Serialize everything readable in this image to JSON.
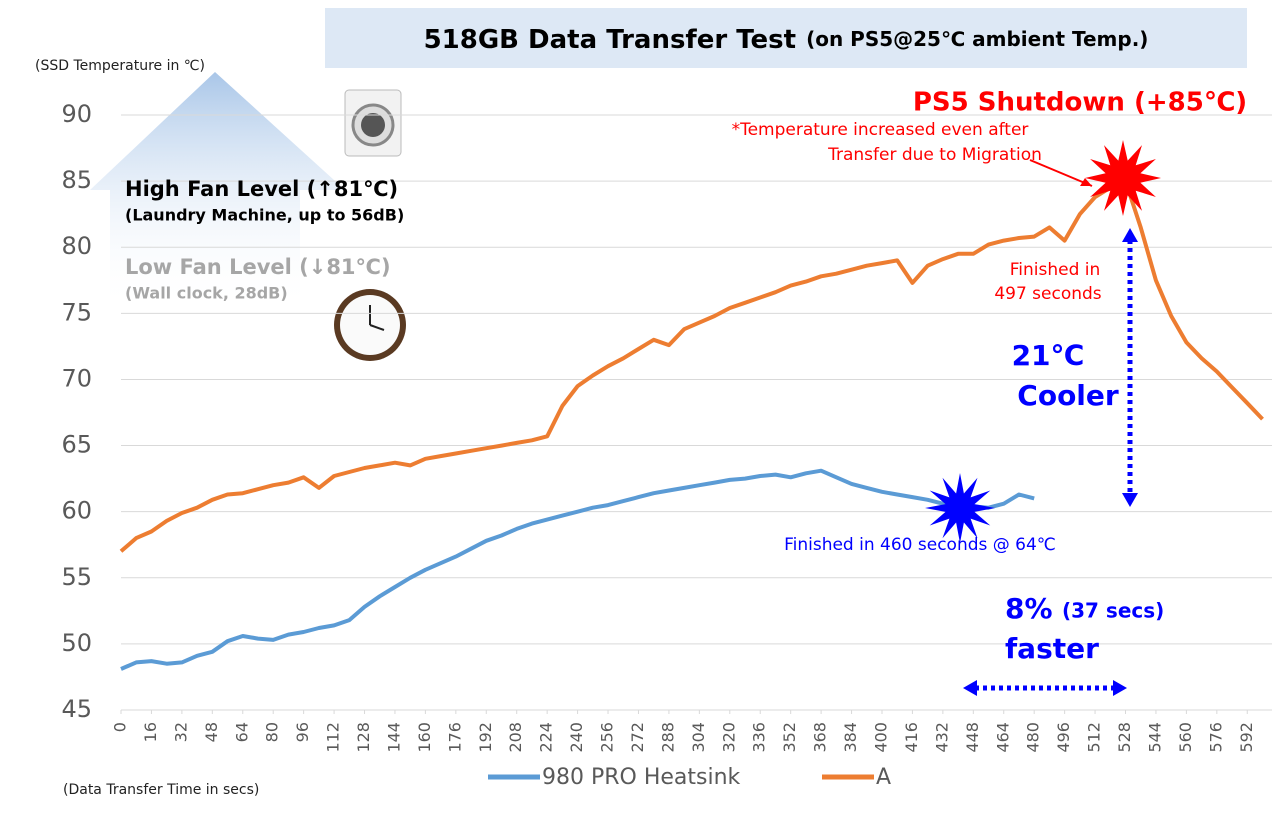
{
  "chart_data": {
    "type": "line",
    "title": "518GB Data Transfer Test",
    "subtitle": "(on PS5@25℃ ambient Temp.)",
    "y_label": "(SSD Temperature in ℃)",
    "x_label": "(Data Transfer Time in secs)",
    "annotations": [
      "PS5 Shutdown (+85℃)",
      "*Temperature increased even after",
      "Transfer due to Migration",
      "High Fan Level (↑81℃)",
      "(Laundry Machine, up to 56dB)",
      "Low Fan Level (↓81℃)",
      "(Wall clock, 28dB)",
      "Finished in",
      "497 seconds",
      "21℃",
      "Cooler",
      "Finished in 460 seconds @ 64℃",
      "8%",
      "(37 secs)",
      "faster"
    ],
    "x": [
      0,
      8,
      16,
      24,
      32,
      40,
      48,
      56,
      64,
      72,
      80,
      88,
      96,
      104,
      112,
      120,
      128,
      136,
      144,
      152,
      160,
      168,
      176,
      184,
      192,
      200,
      208,
      216,
      224,
      232,
      240,
      248,
      256,
      264,
      272,
      280,
      288,
      296,
      304,
      312,
      320,
      328,
      336,
      344,
      352,
      360,
      368,
      376,
      384,
      392,
      400,
      408,
      416,
      424,
      432,
      440,
      448,
      456,
      464,
      472,
      480,
      488,
      496,
      504,
      512,
      520,
      528,
      536,
      544,
      552,
      560,
      568,
      576,
      584,
      592,
      600
    ],
    "series": [
      {
        "name": "980 PRO Heatsink",
        "color": "#5b9bd5",
        "values": [
          48.1,
          48.6,
          48.7,
          48.5,
          48.6,
          49.1,
          49.4,
          50.2,
          50.6,
          50.4,
          50.3,
          50.7,
          50.9,
          51.2,
          51.4,
          51.8,
          52.8,
          53.6,
          54.3,
          55.0,
          55.6,
          56.1,
          56.6,
          57.2,
          57.8,
          58.2,
          58.7,
          59.1,
          59.4,
          59.7,
          60.0,
          60.3,
          60.5,
          60.8,
          61.1,
          61.4,
          61.6,
          61.8,
          62.0,
          62.2,
          62.4,
          62.5,
          62.7,
          62.8,
          62.6,
          62.9,
          63.1,
          62.6,
          62.1,
          61.8,
          61.5,
          61.3,
          61.1,
          60.9,
          60.6,
          60.3,
          60.4,
          60.3,
          60.6,
          61.3,
          61.0,
          null,
          null,
          null,
          null,
          null,
          null,
          null,
          null,
          null,
          null,
          null,
          null,
          null,
          null,
          null
        ]
      },
      {
        "name": "A",
        "color": "#ed7d31",
        "values": [
          57.0,
          58.0,
          58.5,
          59.3,
          59.9,
          60.3,
          60.9,
          61.3,
          61.4,
          61.7,
          62.0,
          62.2,
          62.6,
          61.8,
          62.7,
          63.0,
          63.3,
          63.5,
          63.7,
          63.5,
          64.0,
          64.2,
          64.4,
          64.6,
          64.8,
          65.0,
          65.2,
          65.4,
          65.7,
          68.0,
          69.5,
          70.3,
          71.0,
          71.6,
          72.3,
          73.0,
          72.6,
          73.8,
          74.3,
          74.8,
          75.4,
          75.8,
          76.2,
          76.6,
          77.1,
          77.4,
          77.8,
          78.0,
          78.3,
          78.6,
          78.8,
          79.0,
          77.3,
          78.6,
          79.1,
          79.5,
          79.5,
          80.2,
          80.5,
          80.7,
          80.8,
          81.5,
          80.5,
          82.5,
          83.8,
          84.5,
          85.0,
          81.5,
          77.5,
          74.8,
          72.8,
          71.6,
          70.6,
          69.4,
          68.2,
          67.0
        ]
      }
    ],
    "xlim": [
      0,
      605
    ],
    "xticks": [
      0,
      16,
      32,
      48,
      64,
      80,
      96,
      112,
      128,
      144,
      160,
      176,
      192,
      208,
      224,
      240,
      256,
      272,
      288,
      304,
      320,
      336,
      352,
      368,
      384,
      400,
      416,
      432,
      448,
      464,
      480,
      496,
      512,
      528,
      544,
      560,
      576,
      592
    ],
    "ylim": [
      45,
      90
    ],
    "yticks": [
      45,
      50,
      55,
      60,
      65,
      70,
      75,
      80,
      85,
      90
    ],
    "grid": true
  }
}
